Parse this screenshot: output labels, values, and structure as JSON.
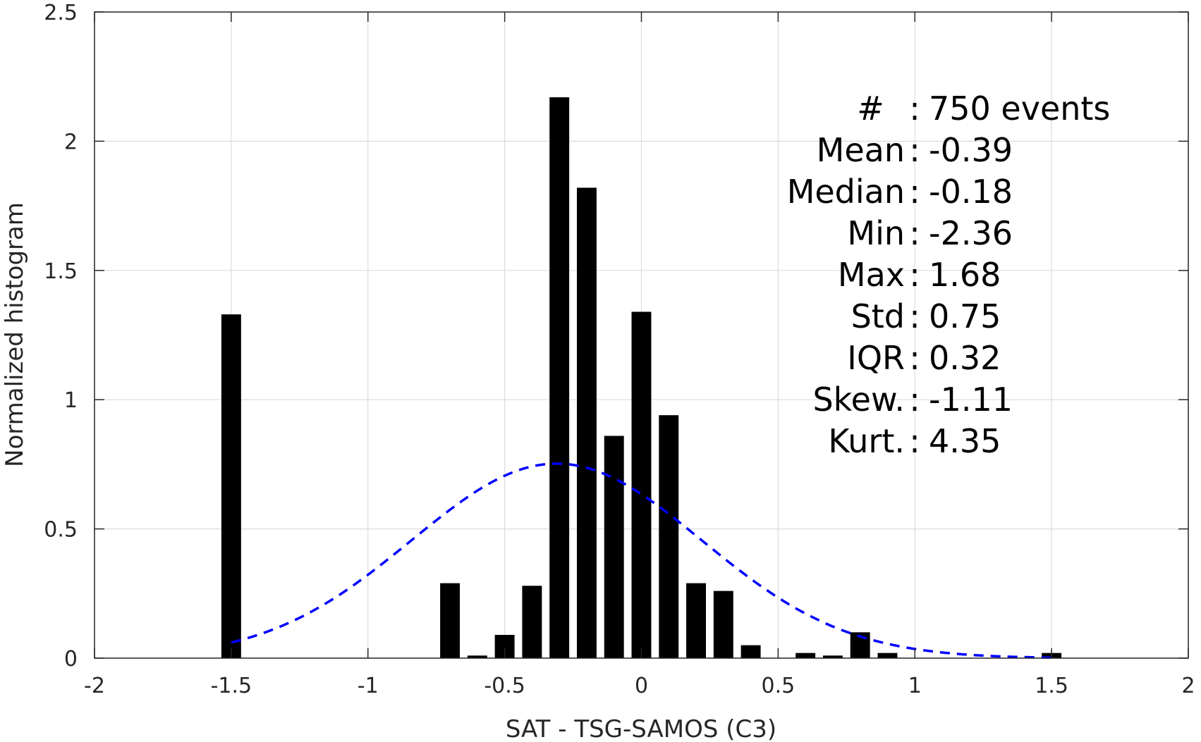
{
  "chart_data": {
    "type": "bar",
    "xlabel": "SAT - TSG-SAMOS (C3)",
    "ylabel": "Normalized histogram",
    "xlim": [
      -2,
      2
    ],
    "ylim": [
      0,
      2.5
    ],
    "xticks": [
      "-2",
      "-1.5",
      "-1",
      "-0.5",
      "0",
      "0.5",
      "1",
      "1.5",
      "2"
    ],
    "yticks": [
      "0",
      "0.5",
      "1",
      "1.5",
      "2",
      "2.5"
    ],
    "grid": true,
    "bin_width": 0.1,
    "bars": [
      {
        "x": -1.5,
        "y": 1.33
      },
      {
        "x": -0.7,
        "y": 0.29
      },
      {
        "x": -0.6,
        "y": 0.01
      },
      {
        "x": -0.5,
        "y": 0.09
      },
      {
        "x": -0.4,
        "y": 0.28
      },
      {
        "x": -0.3,
        "y": 2.17
      },
      {
        "x": -0.2,
        "y": 1.82
      },
      {
        "x": -0.1,
        "y": 0.86
      },
      {
        "x": 0.0,
        "y": 1.34
      },
      {
        "x": 0.1,
        "y": 0.94
      },
      {
        "x": 0.2,
        "y": 0.29
      },
      {
        "x": 0.3,
        "y": 0.26
      },
      {
        "x": 0.4,
        "y": 0.05
      },
      {
        "x": 0.6,
        "y": 0.02
      },
      {
        "x": 0.7,
        "y": 0.01
      },
      {
        "x": 0.8,
        "y": 0.1
      },
      {
        "x": 0.9,
        "y": 0.02
      },
      {
        "x": 1.5,
        "y": 0.02
      }
    ],
    "bar_color": "#000000",
    "fit_curve": {
      "style": "dashed",
      "color": "#0000ff",
      "mean": -0.31,
      "std": 0.53,
      "x_range": [
        -1.5,
        1.5
      ]
    },
    "stats": [
      {
        "label": "#  ",
        "value": "750 events"
      },
      {
        "label": "Mean",
        "value": "-0.39"
      },
      {
        "label": "Median",
        "value": "-0.18"
      },
      {
        "label": "Min",
        "value": "-2.36"
      },
      {
        "label": "Max",
        "value": "1.68"
      },
      {
        "label": "Std",
        "value": "0.75"
      },
      {
        "label": "IQR",
        "value": "0.32"
      },
      {
        "label": "Skew.",
        "value": "-1.11"
      },
      {
        "label": "Kurt.",
        "value": "4.35"
      }
    ]
  }
}
